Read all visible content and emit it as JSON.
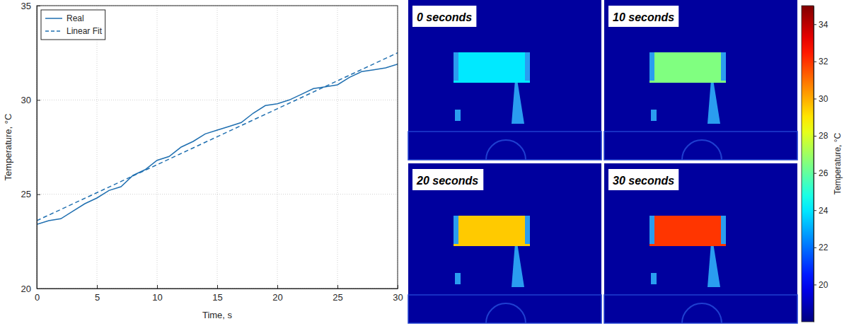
{
  "chart_data": [
    {
      "type": "line",
      "x_label": "Time, s",
      "y_label": "Temperature, °C",
      "xlim": [
        0,
        30
      ],
      "xticks": [
        0,
        5,
        10,
        15,
        20,
        25,
        30
      ],
      "ylim": [
        20,
        35
      ],
      "yticks": [
        20,
        25,
        30,
        35
      ],
      "grid": true,
      "legend": "upper left",
      "series": [
        {
          "name": "Real",
          "color": "#1f6fb0",
          "line_style": "solid",
          "x": [
            0,
            1,
            2,
            3,
            4,
            5,
            6,
            7,
            8,
            9,
            10,
            11,
            12,
            13,
            14,
            15,
            16,
            17,
            18,
            19,
            20,
            21,
            22,
            23,
            24,
            25,
            26,
            27,
            28,
            29,
            30
          ],
          "values": [
            23.4,
            23.6,
            23.7,
            24.1,
            24.5,
            24.8,
            25.2,
            25.4,
            26.0,
            26.3,
            26.8,
            27.0,
            27.5,
            27.8,
            28.2,
            28.4,
            28.6,
            28.8,
            29.3,
            29.7,
            29.8,
            30.0,
            30.3,
            30.6,
            30.7,
            30.8,
            31.2,
            31.5,
            31.6,
            31.7,
            31.9
          ]
        },
        {
          "name": "Linear Fit",
          "color": "#1f6fb0",
          "line_style": "dashed",
          "x": [
            0,
            30
          ],
          "values": [
            23.6,
            32.5
          ]
        }
      ]
    },
    {
      "type": "image",
      "background_value": 18.5,
      "panels": [
        {
          "label": "0 seconds",
          "value": 24
        },
        {
          "label": "10 seconds",
          "value": 26.5
        },
        {
          "label": "20 seconds",
          "value": 29.5
        },
        {
          "label": "30 seconds",
          "value": 32
        }
      ],
      "colorbar": {
        "label": "Temperature, °C",
        "range": [
          18,
          35
        ],
        "ticks": [
          20,
          22,
          24,
          26,
          28,
          30,
          32,
          34
        ]
      }
    }
  ]
}
